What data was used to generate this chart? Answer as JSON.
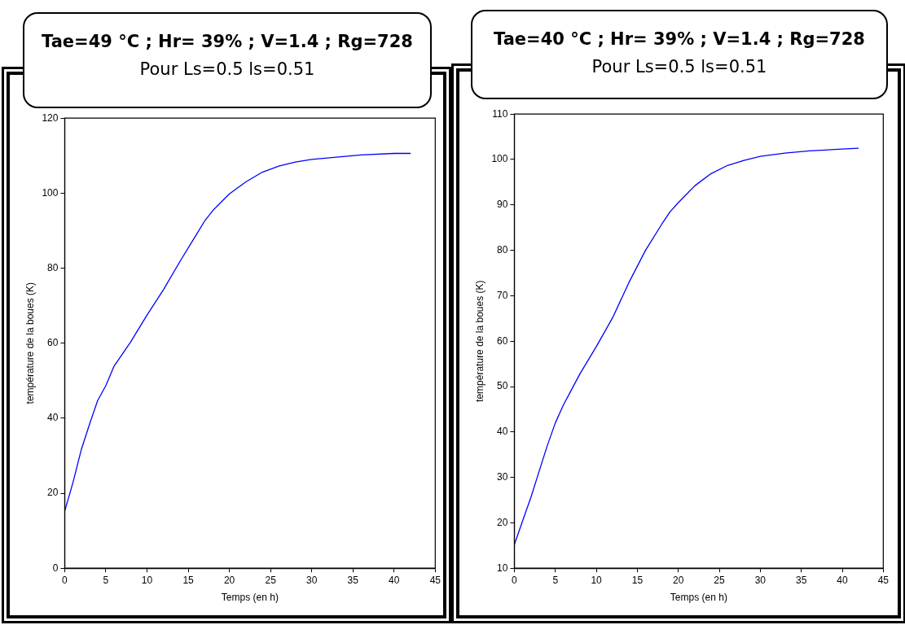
{
  "chart_data": [
    {
      "type": "line",
      "title": "Tae=49 °C ; Hr= 39% ; V=1.4 ; Rg=728",
      "subtitle": "Pour Ls=0.5 ls=0.51",
      "xlabel": "Temps (en h)",
      "ylabel": "température de la boues (K)",
      "x": [
        0,
        1,
        2,
        3,
        4,
        5,
        6,
        8,
        10,
        12,
        14,
        16,
        17,
        18,
        20,
        22,
        24,
        26,
        28,
        30,
        33,
        36,
        40,
        42
      ],
      "series": [
        {
          "color": "#0000ff",
          "values": [
            15.2,
            22.8,
            31.5,
            38.3,
            44.7,
            48.7,
            53.9,
            60.3,
            67.5,
            74.3,
            81.8,
            89.0,
            92.6,
            95.4,
            99.8,
            103.0,
            105.6,
            107.2,
            108.3,
            109.0,
            109.6,
            110.2,
            110.6,
            110.6
          ]
        }
      ],
      "xlim": [
        0,
        45
      ],
      "xticks": [
        0,
        5,
        10,
        15,
        20,
        25,
        30,
        35,
        40,
        45
      ],
      "ylim": [
        0,
        120
      ],
      "yticks": [
        0,
        20,
        40,
        60,
        80,
        100,
        120
      ],
      "grid": false,
      "legend": false,
      "marker": "none",
      "line_style": "solid"
    },
    {
      "type": "line",
      "title": "Tae=40 °C ; Hr= 39% ; V=1.4 ; Rg=728",
      "subtitle": "Pour Ls=0.5 ls=0.51",
      "xlabel": "Temps (en h)",
      "ylabel": "température de la boues (K)",
      "x": [
        0,
        1,
        2,
        3,
        4,
        5,
        6,
        7,
        8,
        10,
        12,
        14,
        16,
        18,
        19,
        20,
        22,
        24,
        26,
        28,
        30,
        33,
        36,
        40,
        42
      ],
      "series": [
        {
          "color": "#0000ff",
          "values": [
            15.2,
            20.4,
            25.5,
            31.2,
            36.9,
            42.0,
            46.0,
            49.4,
            52.8,
            58.8,
            65.2,
            73.0,
            80.0,
            85.8,
            88.5,
            90.5,
            94.2,
            96.9,
            98.7,
            99.8,
            100.7,
            101.4,
            101.9,
            102.3,
            102.5
          ]
        }
      ],
      "xlim": [
        0,
        45
      ],
      "xticks": [
        0,
        5,
        10,
        15,
        20,
        25,
        30,
        35,
        40,
        45
      ],
      "ylim": [
        10,
        110
      ],
      "yticks": [
        10,
        20,
        30,
        40,
        50,
        60,
        70,
        80,
        90,
        100,
        110
      ],
      "grid": false,
      "legend": false,
      "marker": "none",
      "line_style": "solid"
    }
  ]
}
